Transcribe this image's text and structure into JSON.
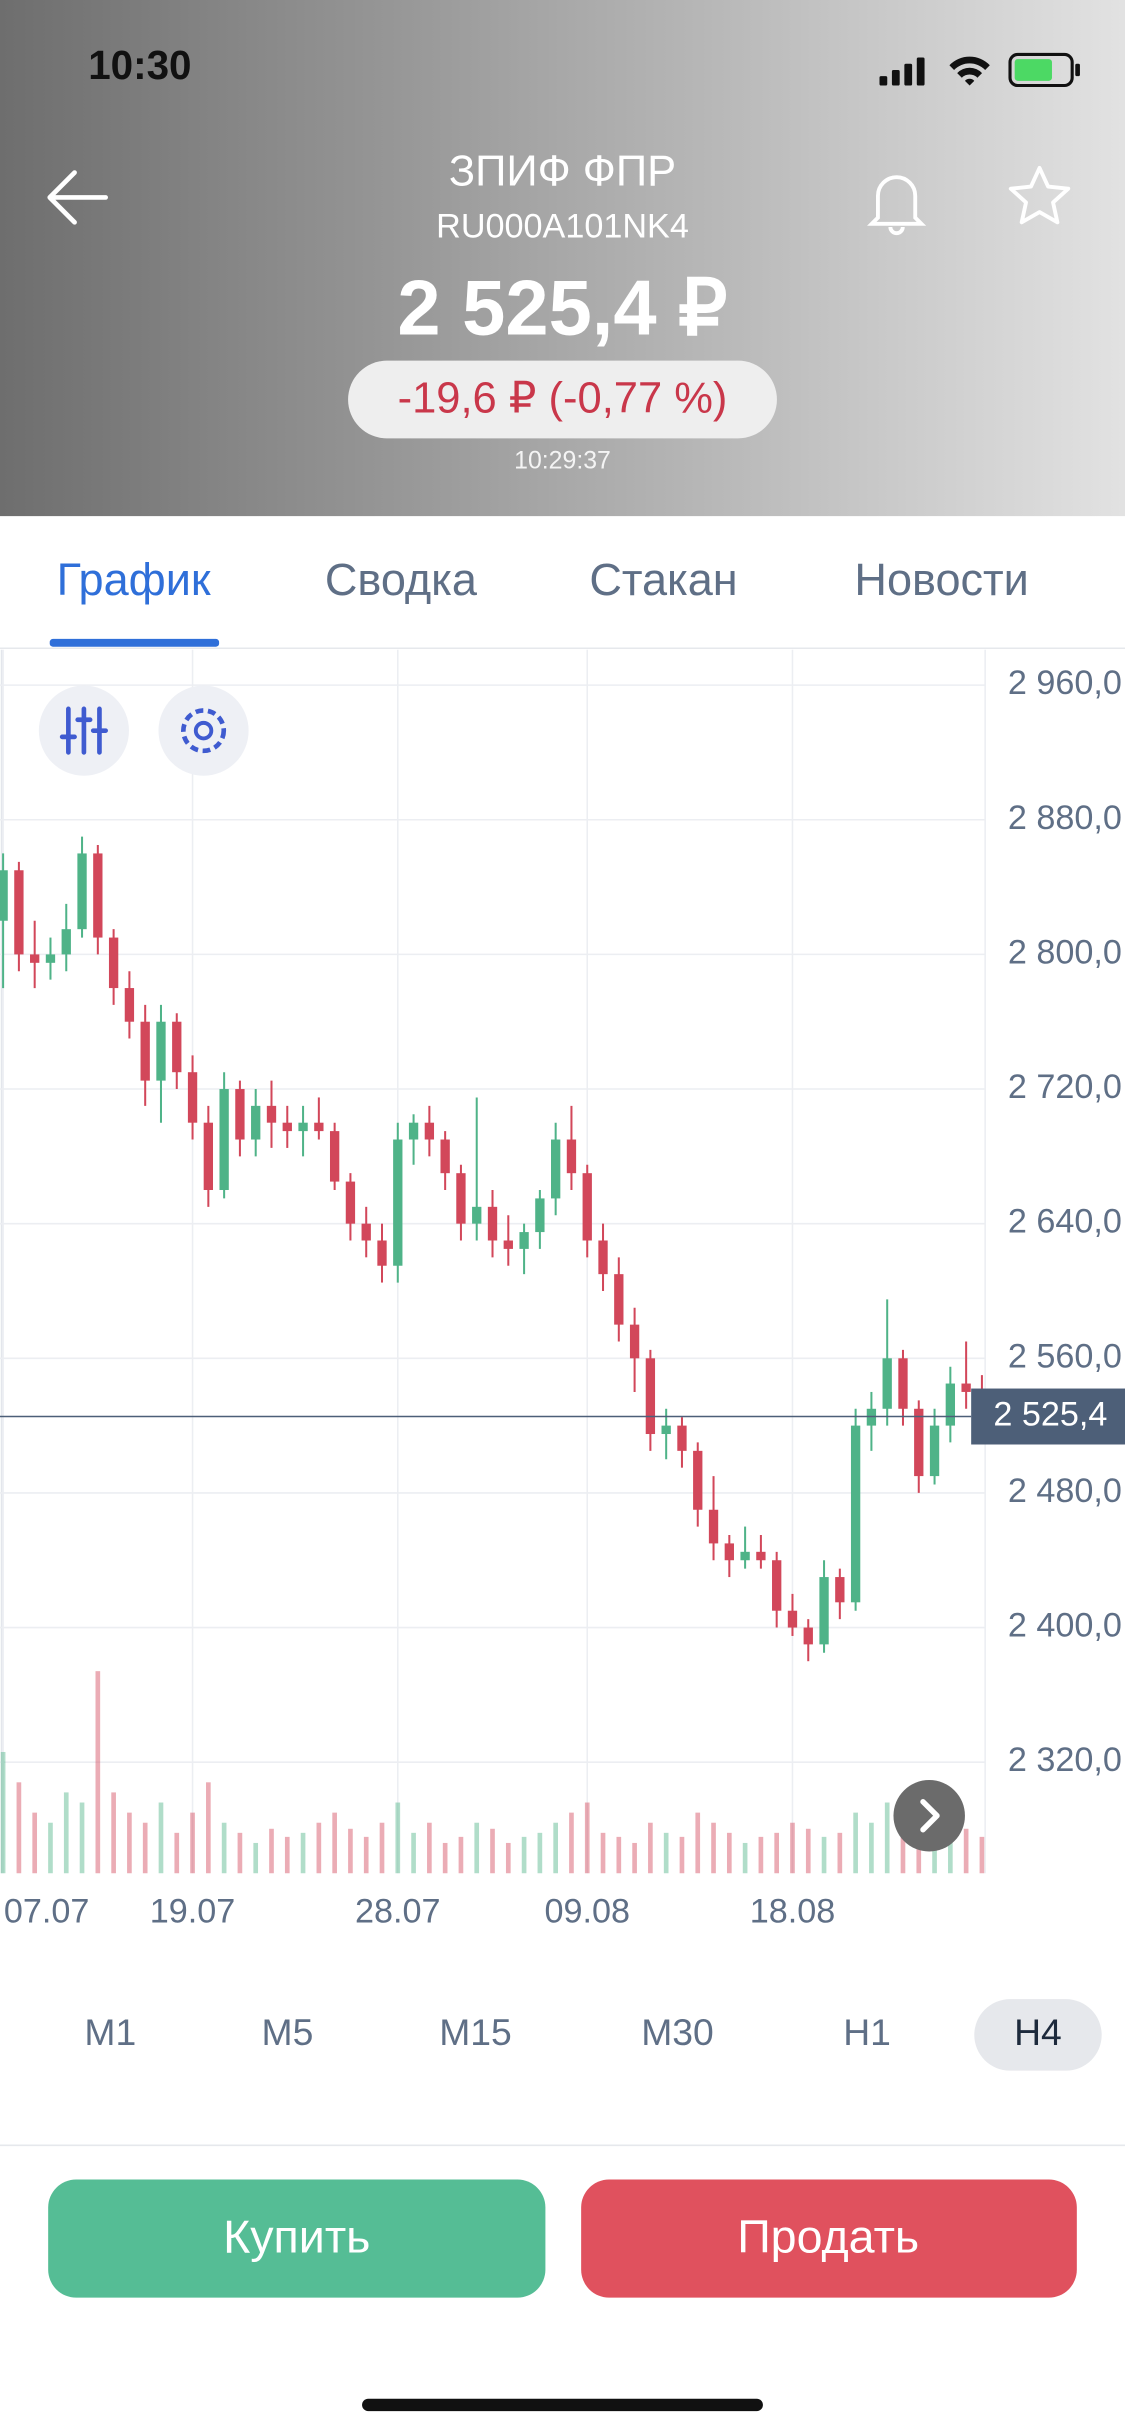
{
  "status": {
    "time": "10:30"
  },
  "header": {
    "title": "ЗПИФ ФПР",
    "isin": "RU000A101NK4",
    "price": "2 525,4 ₽",
    "change": "-19,6 ₽ (-0,77 %)",
    "time": "10:29:37"
  },
  "tabs": [
    "График",
    "Сводка",
    "Стакан",
    "Новости"
  ],
  "chart": {
    "type": "candlestick",
    "categories": [
      "07.07",
      null,
      null,
      null,
      null,
      null,
      null,
      null,
      null,
      null,
      null,
      null,
      "19.07",
      null,
      null,
      null,
      null,
      null,
      null,
      null,
      null,
      null,
      null,
      null,
      null,
      "28.07",
      null,
      null,
      null,
      null,
      null,
      null,
      null,
      null,
      null,
      null,
      null,
      "09.08",
      null,
      null,
      null,
      null,
      null,
      null,
      null,
      null,
      null,
      null,
      null,
      null,
      "18.08",
      null,
      null,
      null,
      null,
      null,
      null,
      null,
      null,
      null,
      null,
      null,
      null
    ],
    "candles": [
      [
        2820,
        2860,
        2780,
        2850
      ],
      [
        2850,
        2855,
        2790,
        2800
      ],
      [
        2800,
        2820,
        2780,
        2795
      ],
      [
        2795,
        2810,
        2785,
        2800
      ],
      [
        2800,
        2830,
        2790,
        2815
      ],
      [
        2815,
        2870,
        2810,
        2860
      ],
      [
        2860,
        2865,
        2800,
        2810
      ],
      [
        2810,
        2815,
        2770,
        2780
      ],
      [
        2780,
        2790,
        2750,
        2760
      ],
      [
        2760,
        2770,
        2710,
        2725
      ],
      [
        2725,
        2770,
        2700,
        2760
      ],
      [
        2760,
        2765,
        2720,
        2730
      ],
      [
        2730,
        2740,
        2690,
        2700
      ],
      [
        2700,
        2710,
        2650,
        2660
      ],
      [
        2660,
        2730,
        2655,
        2720
      ],
      [
        2720,
        2725,
        2680,
        2690
      ],
      [
        2690,
        2720,
        2680,
        2710
      ],
      [
        2710,
        2725,
        2685,
        2700
      ],
      [
        2700,
        2710,
        2685,
        2695
      ],
      [
        2695,
        2710,
        2680,
        2700
      ],
      [
        2700,
        2715,
        2690,
        2695
      ],
      [
        2695,
        2700,
        2660,
        2665
      ],
      [
        2665,
        2670,
        2630,
        2640
      ],
      [
        2640,
        2650,
        2620,
        2630
      ],
      [
        2630,
        2640,
        2605,
        2615
      ],
      [
        2615,
        2700,
        2605,
        2690
      ],
      [
        2690,
        2705,
        2675,
        2700
      ],
      [
        2700,
        2710,
        2680,
        2690
      ],
      [
        2690,
        2695,
        2660,
        2670
      ],
      [
        2670,
        2675,
        2630,
        2640
      ],
      [
        2640,
        2715,
        2630,
        2650
      ],
      [
        2650,
        2660,
        2620,
        2630
      ],
      [
        2630,
        2645,
        2615,
        2625
      ],
      [
        2625,
        2640,
        2610,
        2635
      ],
      [
        2635,
        2660,
        2625,
        2655
      ],
      [
        2655,
        2700,
        2645,
        2690
      ],
      [
        2690,
        2710,
        2660,
        2670
      ],
      [
        2670,
        2675,
        2620,
        2630
      ],
      [
        2630,
        2640,
        2600,
        2610
      ],
      [
        2610,
        2620,
        2570,
        2580
      ],
      [
        2580,
        2590,
        2540,
        2560
      ],
      [
        2560,
        2565,
        2505,
        2515
      ],
      [
        2515,
        2530,
        2500,
        2520
      ],
      [
        2520,
        2525,
        2495,
        2505
      ],
      [
        2505,
        2510,
        2460,
        2470
      ],
      [
        2470,
        2490,
        2440,
        2450
      ],
      [
        2450,
        2455,
        2430,
        2440
      ],
      [
        2440,
        2460,
        2435,
        2445
      ],
      [
        2445,
        2455,
        2435,
        2440
      ],
      [
        2440,
        2445,
        2400,
        2410
      ],
      [
        2410,
        2420,
        2395,
        2400
      ],
      [
        2400,
        2405,
        2380,
        2390
      ],
      [
        2390,
        2440,
        2385,
        2430
      ],
      [
        2430,
        2435,
        2405,
        2415
      ],
      [
        2415,
        2530,
        2410,
        2520
      ],
      [
        2520,
        2540,
        2505,
        2530
      ],
      [
        2530,
        2595,
        2520,
        2560
      ],
      [
        2560,
        2565,
        2520,
        2530
      ],
      [
        2530,
        2535,
        2480,
        2490
      ],
      [
        2490,
        2530,
        2485,
        2520
      ],
      [
        2520,
        2555,
        2510,
        2545
      ],
      [
        2545,
        2570,
        2530,
        2540
      ],
      [
        2540,
        2550,
        2520,
        2525.4
      ]
    ],
    "volumes": [
      60,
      45,
      30,
      25,
      40,
      35,
      100,
      40,
      30,
      25,
      35,
      20,
      30,
      45,
      25,
      20,
      15,
      22,
      18,
      20,
      25,
      30,
      22,
      18,
      25,
      35,
      20,
      25,
      15,
      18,
      25,
      22,
      15,
      18,
      20,
      25,
      30,
      35,
      20,
      18,
      15,
      25,
      20,
      18,
      30,
      25,
      20,
      15,
      18,
      20,
      25,
      22,
      18,
      20,
      30,
      25,
      35,
      20,
      15,
      25,
      30,
      22,
      18
    ],
    "ylim": [
      2254,
      2981
    ],
    "yticks": [
      {
        "value": 2960,
        "label": "2 960,0"
      },
      {
        "value": 2880,
        "label": "2 880,0"
      },
      {
        "value": 2800,
        "label": "2 800,0"
      },
      {
        "value": 2720,
        "label": "2 720,0"
      },
      {
        "value": 2640,
        "label": "2 640,0"
      },
      {
        "value": 2560,
        "label": "2 560,0"
      },
      {
        "value": 2480,
        "label": "2 480,0"
      },
      {
        "value": 2400,
        "label": "2 400,0"
      },
      {
        "value": 2320,
        "label": "2 320,0"
      }
    ],
    "last": {
      "value": 2525.4,
      "label": "2 525,4"
    },
    "up_color": "#4fb388",
    "down_color": "#d2475a",
    "grid": true
  },
  "timeframes": [
    "M1",
    "M5",
    "M15",
    "M30",
    "H1",
    "H4"
  ],
  "selected_timeframe": "H4",
  "buttons": {
    "buy": "Купить",
    "sell": "Продать"
  }
}
